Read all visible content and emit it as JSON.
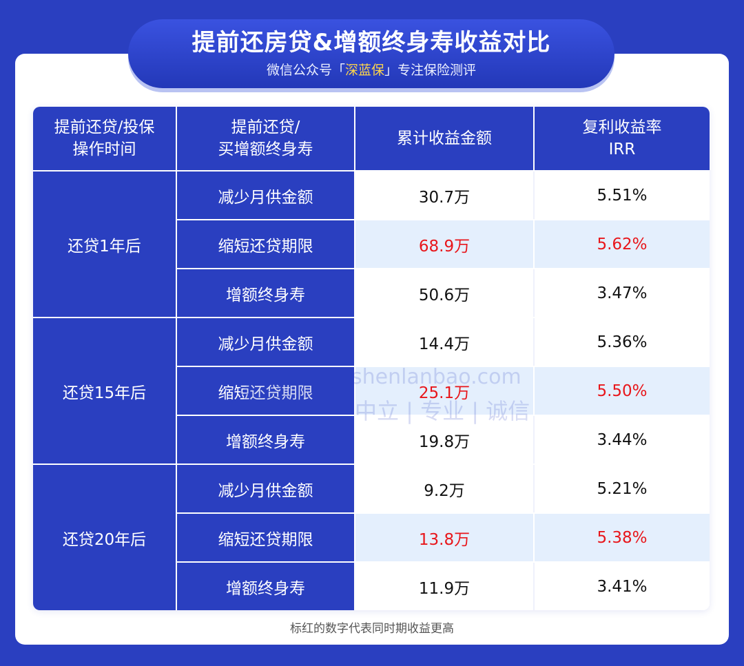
{
  "header": {
    "title": "提前还房贷&增额终身寿收益对比",
    "subtitle_prefix": "微信公众号「",
    "subtitle_highlight": "深蓝保",
    "subtitle_suffix": "」专注保险测评"
  },
  "table": {
    "headers": [
      [
        "提前还贷/投保",
        "操作时间"
      ],
      [
        "提前还贷/",
        "买增额终身寿"
      ],
      [
        "累计收益金额"
      ],
      [
        "复利收益率",
        "IRR"
      ]
    ],
    "groups": [
      {
        "label": "还贷1年后",
        "rows": [
          {
            "op": "减少月供金额",
            "amount": "30.7万",
            "irr": "5.51%",
            "highlight": false
          },
          {
            "op": "缩短还贷期限",
            "amount": "68.9万",
            "irr": "5.62%",
            "highlight": true
          },
          {
            "op": "增额终身寿",
            "amount": "50.6万",
            "irr": "3.47%",
            "highlight": false
          }
        ]
      },
      {
        "label": "还贷15年后",
        "rows": [
          {
            "op": "减少月供金额",
            "amount": "14.4万",
            "irr": "5.36%",
            "highlight": false
          },
          {
            "op": "缩短还贷期限",
            "amount": "25.1万",
            "irr": "5.50%",
            "highlight": true
          },
          {
            "op": "增额终身寿",
            "amount": "19.8万",
            "irr": "3.44%",
            "highlight": false
          }
        ]
      },
      {
        "label": "还贷20年后",
        "rows": [
          {
            "op": "减少月供金额",
            "amount": "9.2万",
            "irr": "5.21%",
            "highlight": false
          },
          {
            "op": "缩短还贷期限",
            "amount": "13.8万",
            "irr": "5.38%",
            "highlight": true
          },
          {
            "op": "增额终身寿",
            "amount": "11.9万",
            "irr": "3.41%",
            "highlight": false
          }
        ]
      }
    ]
  },
  "note": "标红的数字代表同时期收益更高",
  "watermark": {
    "url": "shenlanbao.com",
    "slogan": "中立 | 专业 | 诚信"
  },
  "colors": {
    "primary_blue": "#2a3fc0",
    "highlight_red": "#e8161b",
    "highlight_row_bg": "#e4effd",
    "brand_yellow": "#ffd64a"
  }
}
